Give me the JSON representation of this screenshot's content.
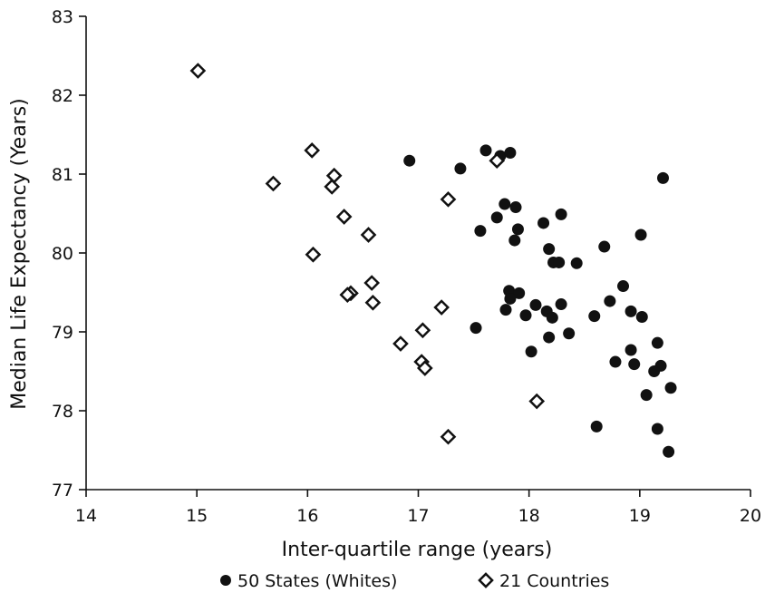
{
  "chart_data": {
    "type": "scatter",
    "title": "",
    "xlabel": "Inter-quartile range (years)",
    "ylabel": "Median Life Expectancy (Years)",
    "xlim": [
      14,
      20
    ],
    "ylim": [
      77,
      83
    ],
    "x_ticks": [
      14,
      15,
      16,
      17,
      18,
      19,
      20
    ],
    "y_ticks": [
      77,
      78,
      79,
      80,
      81,
      82,
      83
    ],
    "grid": false,
    "legend_position": "bottom",
    "series": [
      {
        "name": "50 States (Whites)",
        "marker": "filled-circle",
        "color": "#111111",
        "points": [
          [
            16.92,
            81.17
          ],
          [
            17.38,
            81.07
          ],
          [
            17.61,
            81.3
          ],
          [
            17.74,
            81.23
          ],
          [
            17.83,
            81.27
          ],
          [
            19.21,
            80.95
          ],
          [
            17.78,
            80.62
          ],
          [
            17.88,
            80.58
          ],
          [
            17.71,
            80.45
          ],
          [
            18.29,
            80.49
          ],
          [
            18.13,
            80.38
          ],
          [
            17.56,
            80.28
          ],
          [
            17.9,
            80.3
          ],
          [
            17.87,
            80.16
          ],
          [
            19.01,
            80.23
          ],
          [
            18.68,
            80.08
          ],
          [
            18.18,
            80.05
          ],
          [
            18.22,
            79.88
          ],
          [
            18.27,
            79.88
          ],
          [
            18.43,
            79.87
          ],
          [
            18.85,
            79.58
          ],
          [
            17.82,
            79.52
          ],
          [
            17.91,
            79.49
          ],
          [
            17.83,
            79.42
          ],
          [
            18.73,
            79.39
          ],
          [
            18.06,
            79.34
          ],
          [
            18.29,
            79.35
          ],
          [
            18.16,
            79.26
          ],
          [
            17.79,
            79.28
          ],
          [
            17.97,
            79.21
          ],
          [
            18.21,
            79.18
          ],
          [
            18.59,
            79.2
          ],
          [
            18.92,
            79.26
          ],
          [
            19.02,
            79.19
          ],
          [
            17.52,
            79.05
          ],
          [
            18.36,
            78.98
          ],
          [
            18.18,
            78.93
          ],
          [
            18.02,
            78.75
          ],
          [
            18.92,
            78.77
          ],
          [
            19.16,
            78.86
          ],
          [
            18.78,
            78.62
          ],
          [
            18.95,
            78.59
          ],
          [
            19.19,
            78.57
          ],
          [
            19.13,
            78.5
          ],
          [
            19.06,
            78.2
          ],
          [
            19.28,
            78.29
          ],
          [
            18.61,
            77.8
          ],
          [
            19.16,
            77.77
          ],
          [
            19.26,
            77.48
          ]
        ]
      },
      {
        "name": "21 Countries",
        "marker": "open-diamond",
        "color": "#111111",
        "points": [
          [
            15.01,
            82.31
          ],
          [
            16.04,
            81.3
          ],
          [
            15.69,
            80.88
          ],
          [
            16.24,
            80.98
          ],
          [
            16.22,
            80.84
          ],
          [
            17.71,
            81.17
          ],
          [
            17.27,
            80.68
          ],
          [
            16.33,
            80.46
          ],
          [
            16.55,
            80.23
          ],
          [
            16.05,
            79.98
          ],
          [
            16.58,
            79.62
          ],
          [
            16.39,
            79.49
          ],
          [
            16.36,
            79.47
          ],
          [
            16.59,
            79.37
          ],
          [
            17.21,
            79.31
          ],
          [
            17.04,
            79.02
          ],
          [
            16.84,
            78.85
          ],
          [
            17.03,
            78.62
          ],
          [
            17.06,
            78.54
          ],
          [
            18.07,
            78.12
          ],
          [
            17.27,
            77.67
          ]
        ]
      }
    ]
  }
}
